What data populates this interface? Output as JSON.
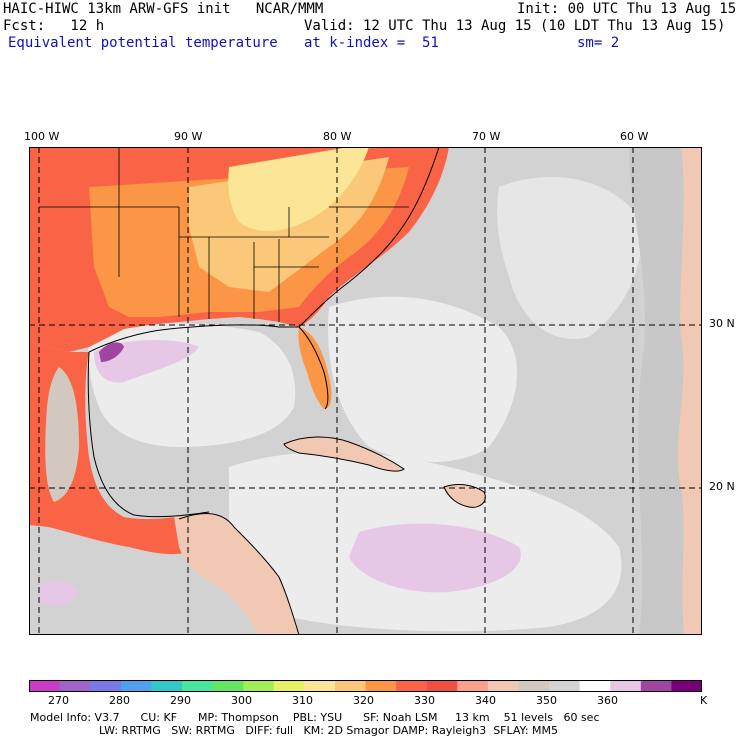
{
  "header": {
    "model_line": "HAIC-HIWC 13km ARW-GFS init   NCAR/MMM",
    "init": "Init: 00 UTC Thu 13 Aug 15",
    "fcst": "Fcst:   12 h",
    "valid": "Valid: 12 UTC Thu 13 Aug 15 (10 LDT Thu 13 Aug 15)",
    "field": "Equivalent potential temperature",
    "level": "at k-index =  51",
    "smoothing": "sm= 2"
  },
  "map": {
    "longitude_labels": [
      "100 W",
      "90 W",
      "80 W",
      "70 W",
      "60 W"
    ],
    "latitude_labels": [
      "30 N",
      "20 N"
    ]
  },
  "colorbar": {
    "unit": "K",
    "tick_labels": [
      "270",
      "280",
      "290",
      "300",
      "310",
      "320",
      "330",
      "340",
      "350",
      "360"
    ],
    "colors": [
      "#c83cc8",
      "#a064c8",
      "#7878e6",
      "#50a0f0",
      "#32c8c8",
      "#46e6a0",
      "#64e664",
      "#a0ee5a",
      "#e6f064",
      "#fae696",
      "#fac878",
      "#fa9646",
      "#fa6446",
      "#f05040",
      "#faa08c",
      "#f0c8b4",
      "#d2c8c0",
      "#d2d2d2",
      "#ffffff",
      "#e6c8e6",
      "#a046a0",
      "#780078"
    ]
  },
  "model_info": {
    "line1": "Model Info: V3.7      CU: KF      MP: Thompson    PBL: YSU      SF: Noah LSM     13 km    51 levels   60 sec",
    "line2": "LW: RRTMG   SW: RRTMG   DIFF: full   KM: 2D Smagor DAMP: Rayleigh3  SFLAY: MM5"
  }
}
